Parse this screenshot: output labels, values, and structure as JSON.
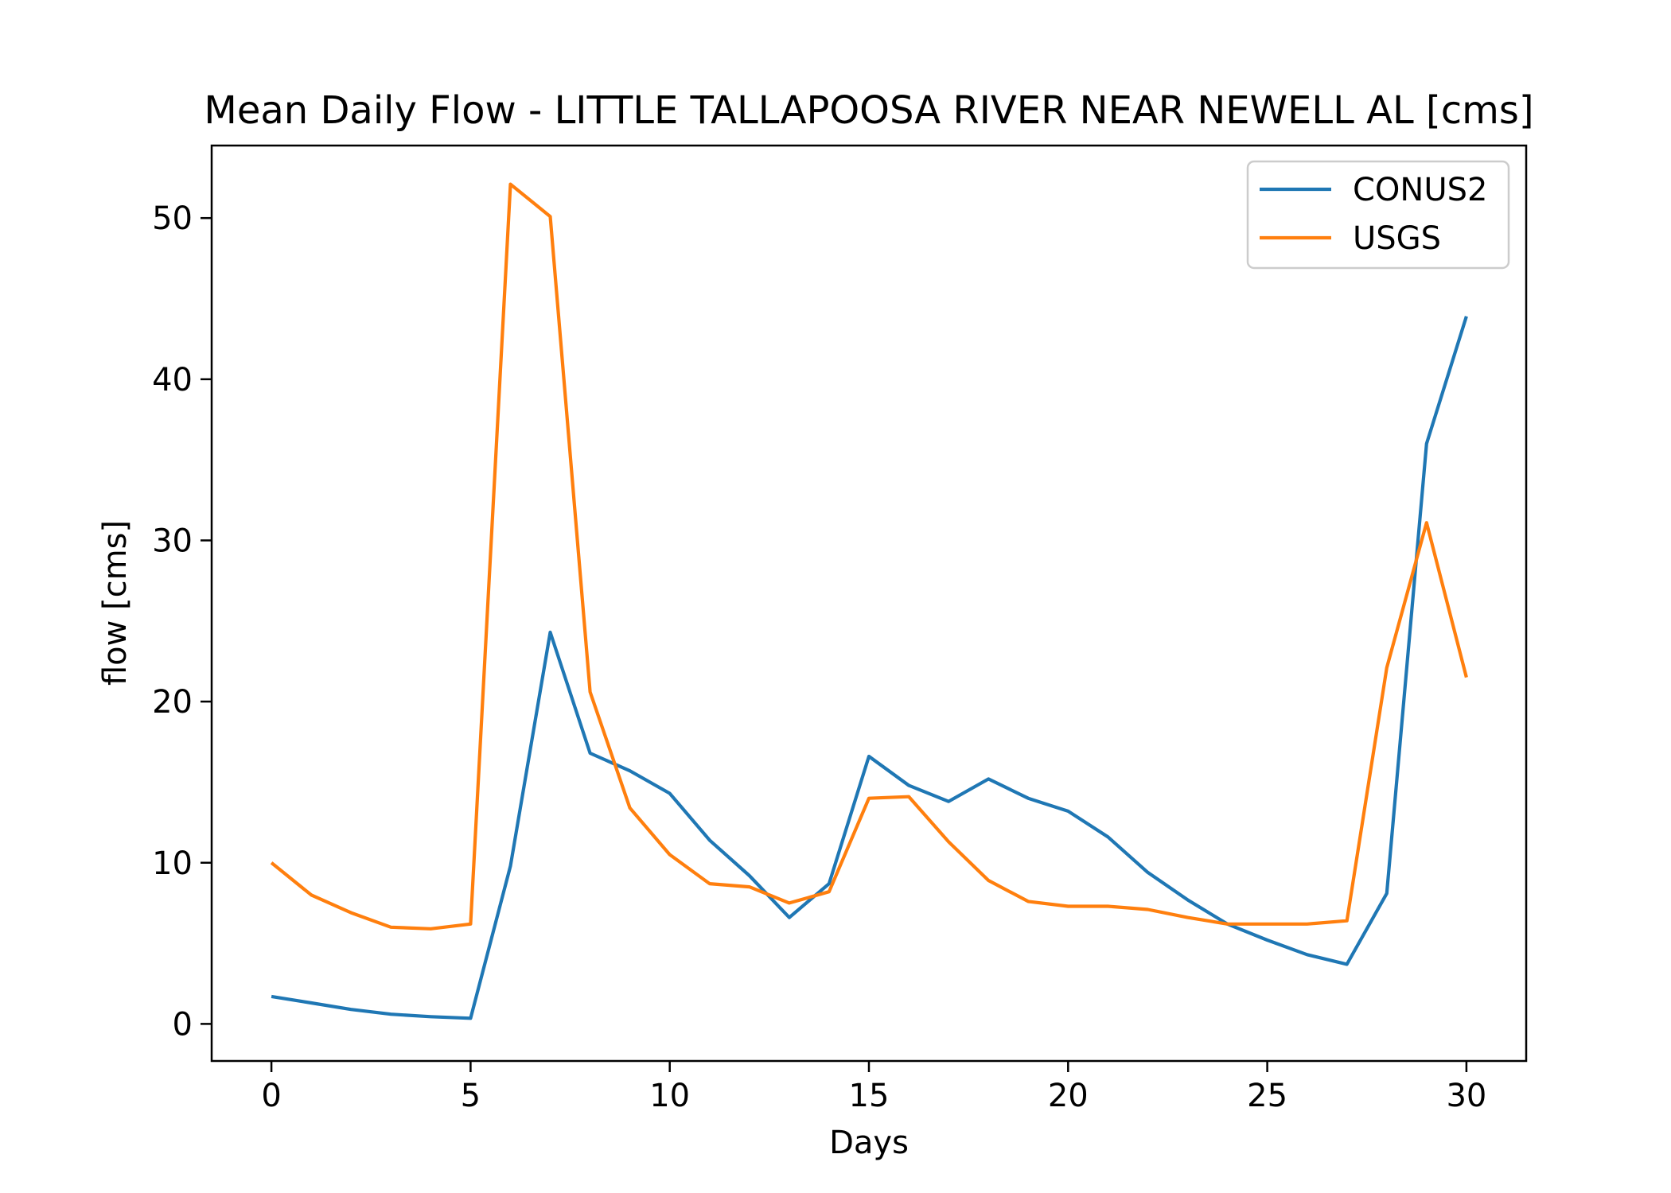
{
  "chart_data": {
    "type": "line",
    "title": "Mean Daily Flow - LITTLE TALLAPOOSA RIVER NEAR NEWELL AL [cms]",
    "xlabel": "Days",
    "ylabel": "flow [cms]",
    "xlim": [
      -1.5,
      31.5
    ],
    "ylim": [
      -2.3,
      54.5
    ],
    "xticks": [
      0,
      5,
      10,
      15,
      20,
      25,
      30
    ],
    "yticks": [
      0,
      10,
      20,
      30,
      40,
      50
    ],
    "grid": false,
    "legend_position": "upper right",
    "x": [
      0,
      1,
      2,
      3,
      4,
      5,
      6,
      7,
      8,
      9,
      10,
      11,
      12,
      13,
      14,
      15,
      16,
      17,
      18,
      19,
      20,
      21,
      22,
      23,
      24,
      25,
      26,
      27,
      28,
      29,
      30
    ],
    "series": [
      {
        "name": "CONUS2",
        "color": "#1f77b4",
        "values": [
          1.7,
          1.3,
          0.9,
          0.6,
          0.45,
          0.35,
          9.8,
          24.3,
          16.8,
          15.7,
          14.3,
          11.4,
          9.2,
          6.6,
          8.7,
          16.6,
          14.8,
          13.8,
          15.2,
          14.0,
          13.2,
          11.6,
          9.4,
          7.7,
          6.2,
          5.2,
          4.3,
          3.7,
          8.1,
          36.0,
          43.9
        ]
      },
      {
        "name": "USGS",
        "color": "#ff7f0e",
        "values": [
          10.0,
          8.0,
          6.9,
          6.0,
          5.9,
          6.2,
          52.1,
          50.1,
          20.6,
          13.4,
          10.5,
          8.7,
          8.5,
          7.5,
          8.2,
          14.0,
          14.1,
          11.3,
          8.9,
          7.6,
          7.3,
          7.3,
          7.1,
          6.6,
          6.2,
          6.2,
          6.2,
          6.4,
          22.1,
          31.1,
          21.5
        ]
      }
    ]
  }
}
